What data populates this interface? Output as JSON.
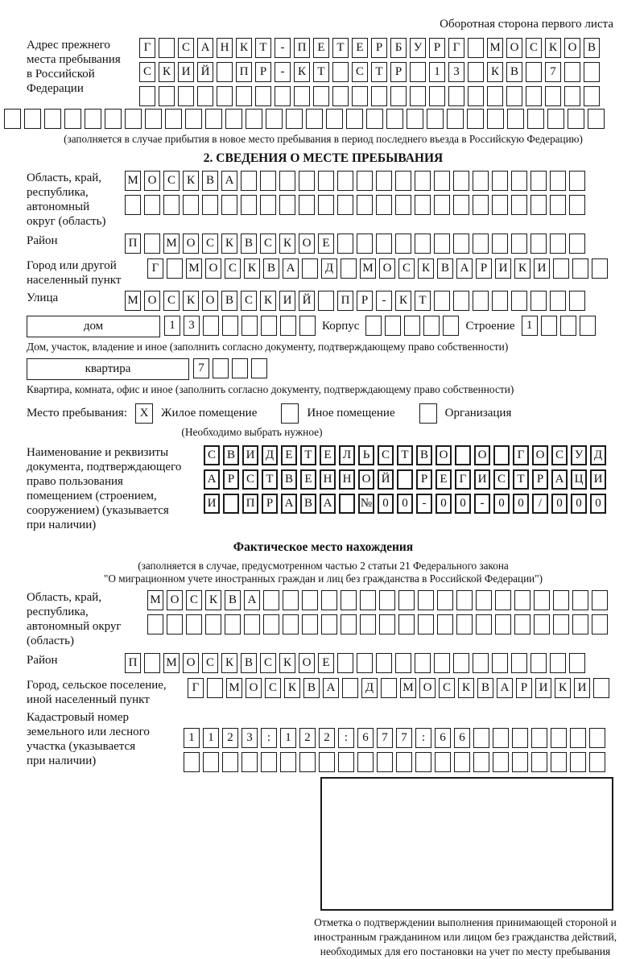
{
  "page": {
    "header_note": "Оборотная сторона первого листа"
  },
  "prev_address": {
    "label_lines": [
      "Адрес прежнего",
      "места пребывания",
      "в Российской",
      "Федерации"
    ],
    "rows": [
      {
        "text": "Г САНКТ-ПЕТЕРБУРГ МОСКОВ",
        "len": 24
      },
      {
        "text": "СКИЙ ПР-КТ СТР 13 КВ 7",
        "len": 24
      },
      {
        "text": "",
        "len": 24
      }
    ],
    "overflow_row": {
      "text": "",
      "len": 30
    },
    "note": "(заполняется в случае прибытия в новое место пребывания в период последнего въезда в Российскую Федерацию)"
  },
  "section2": {
    "title": "2. СВЕДЕНИЯ О МЕСТЕ ПРЕБЫВАНИЯ",
    "region": {
      "label_lines": [
        "Область, край,",
        "республика,",
        "автономный",
        "округ (область)"
      ],
      "rows": [
        {
          "text": "МОСКВА",
          "len": 24
        },
        {
          "text": "",
          "len": 24
        }
      ]
    },
    "district": {
      "label": "Район",
      "row": {
        "text": "П МОСКВСКОЕ",
        "len": 24
      }
    },
    "city": {
      "label_lines": [
        "Город или другой",
        "населенный пункт"
      ],
      "row": {
        "text": "Г МОСКВА Д МОСКВАРИКИ",
        "len": 24
      }
    },
    "street": {
      "label": "Улица",
      "row": {
        "text": "МОСКОВСКИЙ ПР-КТ",
        "len": 24
      }
    },
    "house": {
      "label": "дом",
      "row": {
        "text": "13",
        "len": 8
      },
      "korpus_label": "Корпус",
      "korpus_row": {
        "text": "",
        "len": 5
      },
      "stroenie_label": "Строение",
      "stroenie_row": {
        "text": "1",
        "len": 4
      }
    },
    "house_note": "Дом, участок, владение и иное (заполнить согласно документу, подтверждающему право собственности)",
    "apartment": {
      "label": "квартира",
      "row": {
        "text": "7",
        "len": 4
      }
    },
    "apartment_note": "Квартира, комната, офис и иное (заполнить согласно документу, подтверждающему право собственности)",
    "stay_type": {
      "label": "Место пребывания:",
      "options": [
        {
          "label": "Жилое помещение",
          "checked": "X"
        },
        {
          "label": "Иное помещение",
          "checked": ""
        },
        {
          "label": "Организация",
          "checked": ""
        }
      ],
      "hint": "(Необходимо выбрать нужное)"
    },
    "document": {
      "label_lines": [
        "Наименование и реквизиты",
        "документа, подтверждающего",
        "право пользования",
        "помещением (строением,",
        "сооружением) (указывается",
        "при наличии)"
      ],
      "rows": [
        {
          "text": "СВИДЕТЕЛЬСТВО О ГОСУД",
          "len": 21
        },
        {
          "text": "АРСТВЕННОЙ РЕГИСТРАЦИ",
          "len": 21
        },
        {
          "text": "И ПРАВА №00-00-00/000",
          "len": 21
        }
      ]
    }
  },
  "actual_location": {
    "title": "Фактическое место нахождения",
    "note_lines": [
      "(заполняется в случае, предусмотренном частью 2 статьи 21 Федерального закона",
      "\"О миграционном учете иностранных граждан и лиц без гражданства в Российской Федерации\")"
    ],
    "region": {
      "label_lines": [
        "Область, край,",
        "республика,",
        "автономный округ",
        "(область)"
      ],
      "rows": [
        {
          "text": "МОСКВА",
          "len": 24
        },
        {
          "text": "",
          "len": 24
        }
      ]
    },
    "district": {
      "label": "Район",
      "row": {
        "text": "П МОСКВСКОЕ",
        "len": 24
      }
    },
    "settlement": {
      "label_lines": [
        "Город, сельское поселение,",
        "иной населенный пункт"
      ],
      "row": {
        "text": "Г МОСКВА Д МОСКВАРИКИ",
        "len": 22
      }
    },
    "cadastral": {
      "label_lines": [
        "Кадастровый номер",
        "земельного или лесного",
        "участка (указывается",
        "при наличии)"
      ],
      "rows": [
        {
          "text": "1123:122:677:66",
          "len": 22
        },
        {
          "text": "",
          "len": 22
        }
      ]
    }
  },
  "confirmation": {
    "note": "Отметка о подтверждении выполнения принимающей стороной и иностранным гражданином или лицом без гражданства действий, необходимых для его постановки на учет по месту пребывания"
  }
}
